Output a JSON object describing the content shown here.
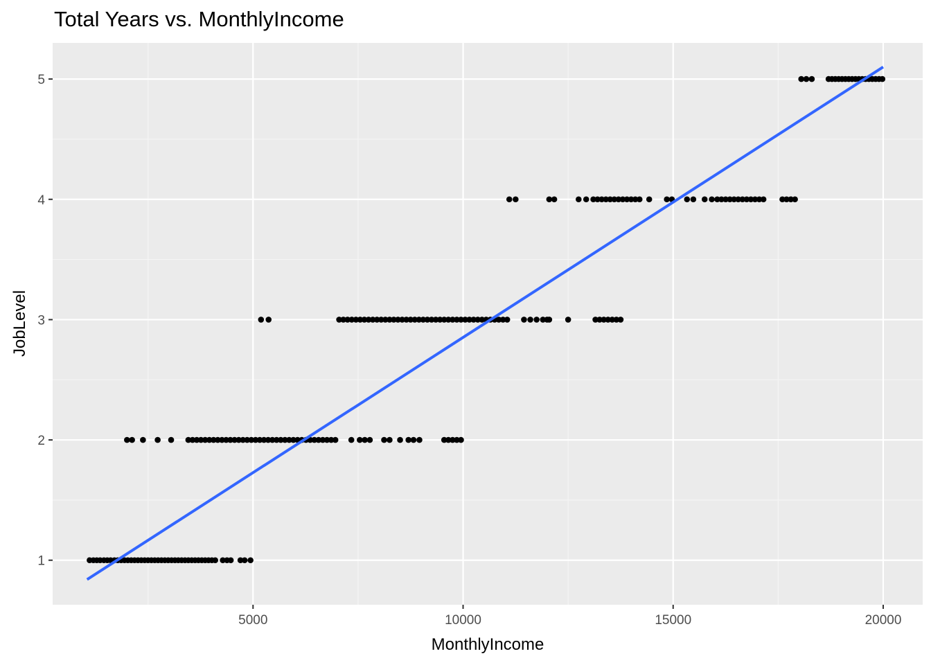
{
  "chart_data": {
    "type": "scatter",
    "title": "Total Years vs. MonthlyIncome",
    "xlabel": "MonthlyIncome",
    "ylabel": "JobLevel",
    "xlim": [
      230,
      20940
    ],
    "ylim": [
      0.63,
      5.3
    ],
    "x_ticks": [
      5000,
      10000,
      15000,
      20000
    ],
    "x_tick_labels": [
      "5000",
      "10000",
      "15000",
      "20000"
    ],
    "y_ticks": [
      1,
      2,
      3,
      4,
      5
    ],
    "y_tick_labels": [
      "1",
      "2",
      "3",
      "4",
      "5"
    ],
    "grid": true,
    "background": "#EBEBEB",
    "point_color": "#000000",
    "fit_color": "#3366FF",
    "series": [
      {
        "points": [
          [
            1110,
            1
          ],
          [
            1200,
            1
          ],
          [
            1280,
            1
          ],
          [
            1360,
            1
          ],
          [
            1450,
            1
          ],
          [
            1530,
            1
          ],
          [
            1610,
            1
          ],
          [
            1700,
            1
          ],
          [
            1780,
            1
          ],
          [
            1860,
            1
          ],
          [
            1940,
            1
          ],
          [
            2020,
            1
          ],
          [
            2100,
            1
          ],
          [
            2180,
            1
          ],
          [
            2260,
            1
          ],
          [
            2340,
            1
          ],
          [
            2420,
            1
          ],
          [
            2500,
            1
          ],
          [
            2580,
            1
          ],
          [
            2660,
            1
          ],
          [
            2740,
            1
          ],
          [
            2820,
            1
          ],
          [
            2900,
            1
          ],
          [
            2980,
            1
          ],
          [
            3060,
            1
          ],
          [
            3140,
            1
          ],
          [
            3220,
            1
          ],
          [
            3300,
            1
          ],
          [
            3380,
            1
          ],
          [
            3460,
            1
          ],
          [
            3540,
            1
          ],
          [
            3620,
            1
          ],
          [
            3700,
            1
          ],
          [
            3780,
            1
          ],
          [
            3860,
            1
          ],
          [
            3940,
            1
          ],
          [
            4020,
            1
          ],
          [
            4100,
            1
          ],
          [
            4280,
            1
          ],
          [
            4380,
            1
          ],
          [
            4470,
            1
          ],
          [
            4700,
            1
          ],
          [
            4800,
            1
          ],
          [
            4940,
            1
          ],
          [
            2000,
            2
          ],
          [
            2120,
            2
          ],
          [
            2380,
            2
          ],
          [
            2730,
            2
          ],
          [
            3050,
            2
          ],
          [
            3460,
            2
          ],
          [
            3560,
            2
          ],
          [
            3660,
            2
          ],
          [
            3760,
            2
          ],
          [
            3860,
            2
          ],
          [
            3960,
            2
          ],
          [
            4060,
            2
          ],
          [
            4160,
            2
          ],
          [
            4260,
            2
          ],
          [
            4360,
            2
          ],
          [
            4460,
            2
          ],
          [
            4560,
            2
          ],
          [
            4660,
            2
          ],
          [
            4760,
            2
          ],
          [
            4860,
            2
          ],
          [
            4960,
            2
          ],
          [
            5060,
            2
          ],
          [
            5160,
            2
          ],
          [
            5260,
            2
          ],
          [
            5360,
            2
          ],
          [
            5460,
            2
          ],
          [
            5560,
            2
          ],
          [
            5660,
            2
          ],
          [
            5760,
            2
          ],
          [
            5860,
            2
          ],
          [
            5960,
            2
          ],
          [
            6060,
            2
          ],
          [
            6160,
            2
          ],
          [
            6260,
            2
          ],
          [
            6360,
            2
          ],
          [
            6460,
            2
          ],
          [
            6560,
            2
          ],
          [
            6660,
            2
          ],
          [
            6760,
            2
          ],
          [
            6860,
            2
          ],
          [
            6960,
            2
          ],
          [
            7340,
            2
          ],
          [
            7540,
            2
          ],
          [
            7660,
            2
          ],
          [
            7780,
            2
          ],
          [
            8120,
            2
          ],
          [
            8250,
            2
          ],
          [
            8500,
            2
          ],
          [
            8700,
            2
          ],
          [
            8820,
            2
          ],
          [
            8960,
            2
          ],
          [
            9550,
            2
          ],
          [
            9650,
            2
          ],
          [
            9750,
            2
          ],
          [
            9850,
            2
          ],
          [
            9950,
            2
          ],
          [
            5190,
            3
          ],
          [
            5370,
            3
          ],
          [
            7050,
            3
          ],
          [
            7150,
            3
          ],
          [
            7250,
            3
          ],
          [
            7350,
            3
          ],
          [
            7450,
            3
          ],
          [
            7550,
            3
          ],
          [
            7650,
            3
          ],
          [
            7750,
            3
          ],
          [
            7850,
            3
          ],
          [
            7950,
            3
          ],
          [
            8050,
            3
          ],
          [
            8150,
            3
          ],
          [
            8250,
            3
          ],
          [
            8350,
            3
          ],
          [
            8450,
            3
          ],
          [
            8550,
            3
          ],
          [
            8650,
            3
          ],
          [
            8750,
            3
          ],
          [
            8850,
            3
          ],
          [
            8950,
            3
          ],
          [
            9050,
            3
          ],
          [
            9150,
            3
          ],
          [
            9250,
            3
          ],
          [
            9350,
            3
          ],
          [
            9450,
            3
          ],
          [
            9550,
            3
          ],
          [
            9650,
            3
          ],
          [
            9750,
            3
          ],
          [
            9850,
            3
          ],
          [
            9950,
            3
          ],
          [
            10050,
            3
          ],
          [
            10150,
            3
          ],
          [
            10250,
            3
          ],
          [
            10350,
            3
          ],
          [
            10450,
            3
          ],
          [
            10550,
            3
          ],
          [
            10650,
            3
          ],
          [
            10750,
            3
          ],
          [
            10850,
            3
          ],
          [
            10950,
            3
          ],
          [
            11050,
            3
          ],
          [
            11450,
            3
          ],
          [
            11600,
            3
          ],
          [
            11750,
            3
          ],
          [
            11900,
            3
          ],
          [
            12000,
            3
          ],
          [
            12050,
            3
          ],
          [
            12500,
            3
          ],
          [
            13150,
            3
          ],
          [
            13250,
            3
          ],
          [
            13350,
            3
          ],
          [
            13450,
            3
          ],
          [
            13550,
            3
          ],
          [
            13650,
            3
          ],
          [
            13750,
            3
          ],
          [
            11100,
            4
          ],
          [
            11250,
            4
          ],
          [
            12050,
            4
          ],
          [
            12170,
            4
          ],
          [
            12750,
            4
          ],
          [
            12930,
            4
          ],
          [
            13100,
            4
          ],
          [
            13200,
            4
          ],
          [
            13300,
            4
          ],
          [
            13400,
            4
          ],
          [
            13500,
            4
          ],
          [
            13600,
            4
          ],
          [
            13700,
            4
          ],
          [
            13800,
            4
          ],
          [
            13900,
            4
          ],
          [
            14000,
            4
          ],
          [
            14100,
            4
          ],
          [
            14200,
            4
          ],
          [
            14430,
            4
          ],
          [
            14850,
            4
          ],
          [
            14970,
            4
          ],
          [
            15330,
            4
          ],
          [
            15480,
            4
          ],
          [
            15750,
            4
          ],
          [
            15920,
            4
          ],
          [
            16050,
            4
          ],
          [
            16150,
            4
          ],
          [
            16250,
            4
          ],
          [
            16350,
            4
          ],
          [
            16450,
            4
          ],
          [
            16550,
            4
          ],
          [
            16650,
            4
          ],
          [
            16750,
            4
          ],
          [
            16850,
            4
          ],
          [
            16950,
            4
          ],
          [
            17050,
            4
          ],
          [
            17150,
            4
          ],
          [
            17600,
            4
          ],
          [
            17700,
            4
          ],
          [
            17800,
            4
          ],
          [
            17900,
            4
          ],
          [
            18050,
            5
          ],
          [
            18170,
            5
          ],
          [
            18300,
            5
          ],
          [
            18700,
            5
          ],
          [
            18780,
            5
          ],
          [
            18860,
            5
          ],
          [
            18940,
            5
          ],
          [
            19020,
            5
          ],
          [
            19100,
            5
          ],
          [
            19180,
            5
          ],
          [
            19260,
            5
          ],
          [
            19340,
            5
          ],
          [
            19420,
            5
          ],
          [
            19500,
            5
          ],
          [
            19580,
            5
          ],
          [
            19660,
            5
          ],
          [
            19740,
            5
          ],
          [
            19820,
            5
          ],
          [
            19900,
            5
          ],
          [
            19980,
            5
          ]
        ]
      }
    ],
    "fit_line": {
      "x": [
        1050,
        19999
      ],
      "y": [
        0.84,
        5.1
      ]
    }
  }
}
